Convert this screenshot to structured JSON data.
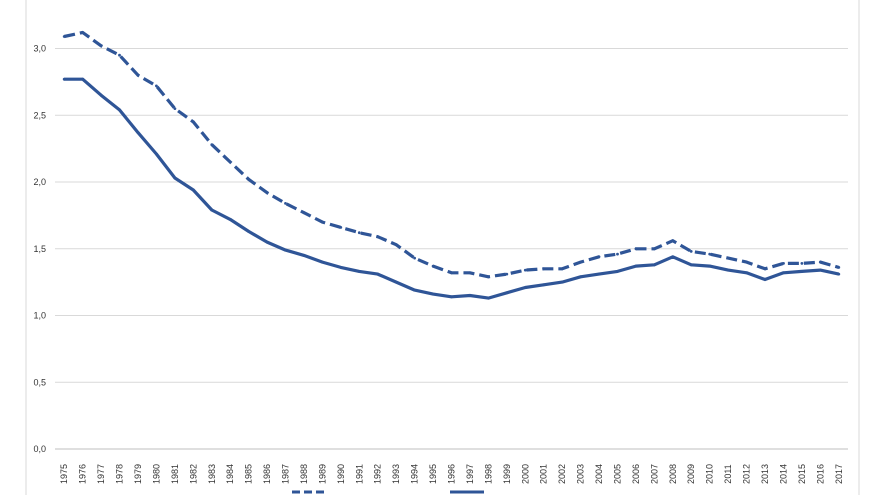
{
  "chart_data": {
    "type": "line",
    "x": [
      1975,
      1976,
      1977,
      1978,
      1979,
      1980,
      1981,
      1982,
      1983,
      1984,
      1985,
      1986,
      1987,
      1988,
      1989,
      1990,
      1991,
      1992,
      1993,
      1994,
      1995,
      1996,
      1997,
      1998,
      1999,
      2000,
      2001,
      2002,
      2003,
      2004,
      2005,
      2006,
      2007,
      2008,
      2009,
      2010,
      2011,
      2012,
      2013,
      2014,
      2015,
      2016,
      2017
    ],
    "x_tick_labels": [
      "1975",
      "1976",
      "1977",
      "1978",
      "1979",
      "1980",
      "1981",
      "1982",
      "1983",
      "1984",
      "1985",
      "1986",
      "1987",
      "1988",
      "1989",
      "1990",
      "1991",
      "1992",
      "1993",
      "1994",
      "1995",
      "1996",
      "1997",
      "1998",
      "1999",
      "2000",
      "2001",
      "2002",
      "2003",
      "2004",
      "2005",
      "2006",
      "2007",
      "2008",
      "2009",
      "2010",
      "2011",
      "2012",
      "2013",
      "2014",
      "2015",
      "2016",
      "2017"
    ],
    "y_ticks": [
      0,
      0.5,
      1.0,
      1.5,
      2.0,
      2.5,
      3.0
    ],
    "y_tick_labels": [
      "0,0",
      "0,5",
      "1,0",
      "1,5",
      "2,0",
      "2,5",
      "3,0"
    ],
    "ylim": [
      0,
      3.3
    ],
    "grid": true,
    "legend_position": "bottom",
    "series": [
      {
        "style": "dashed",
        "color": "#2f5597",
        "values": [
          3.09,
          3.12,
          3.02,
          2.95,
          2.8,
          2.72,
          2.55,
          2.45,
          2.28,
          2.15,
          2.02,
          1.92,
          1.84,
          1.77,
          1.7,
          1.66,
          1.62,
          1.59,
          1.53,
          1.43,
          1.37,
          1.32,
          1.32,
          1.29,
          1.31,
          1.34,
          1.35,
          1.35,
          1.4,
          1.44,
          1.46,
          1.5,
          1.5,
          1.56,
          1.48,
          1.46,
          1.43,
          1.4,
          1.35,
          1.39,
          1.39,
          1.4,
          1.36
        ]
      },
      {
        "style": "solid",
        "color": "#2f5597",
        "values": [
          2.77,
          2.77,
          2.65,
          2.54,
          2.37,
          2.21,
          2.03,
          1.94,
          1.79,
          1.72,
          1.63,
          1.55,
          1.49,
          1.45,
          1.4,
          1.36,
          1.33,
          1.31,
          1.25,
          1.19,
          1.16,
          1.14,
          1.15,
          1.13,
          1.17,
          1.21,
          1.23,
          1.25,
          1.29,
          1.31,
          1.33,
          1.37,
          1.38,
          1.44,
          1.38,
          1.37,
          1.34,
          1.32,
          1.27,
          1.32,
          1.33,
          1.34,
          1.31
        ]
      }
    ]
  }
}
